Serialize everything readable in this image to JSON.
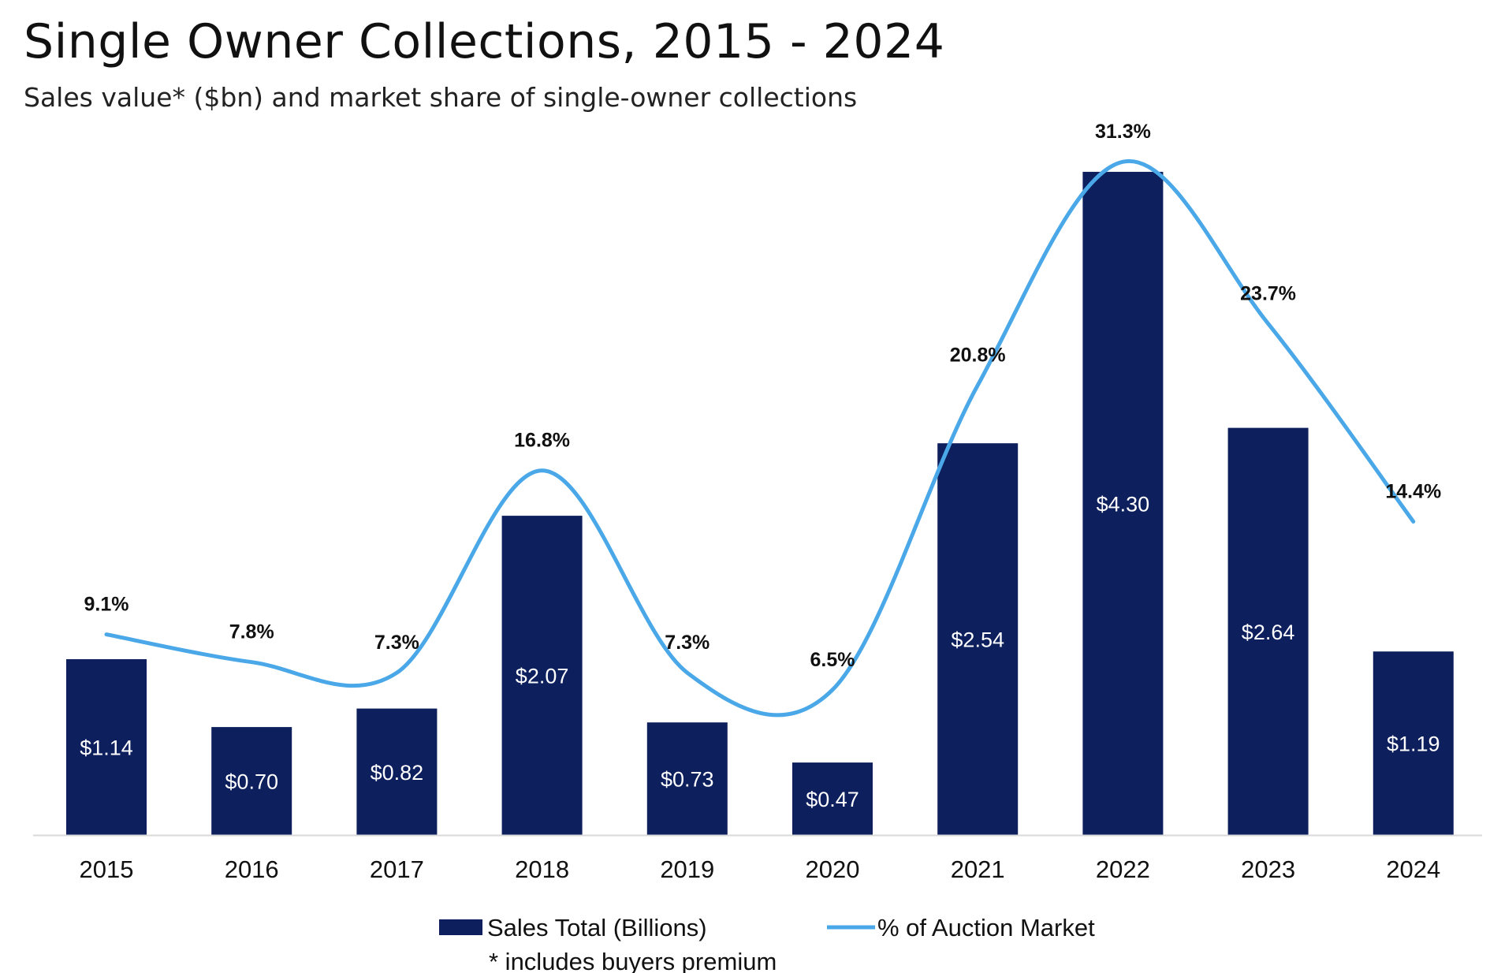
{
  "chart_data": {
    "type": "bar",
    "title": "Single Owner Collections, 2015 - 2024",
    "subtitle": "Sales value* ($bn) and market share of single-owner collections",
    "categories": [
      "2015",
      "2016",
      "2017",
      "2018",
      "2019",
      "2020",
      "2021",
      "2022",
      "2023",
      "2024"
    ],
    "series": [
      {
        "name": "Sales Total (Billions)",
        "type": "bar",
        "color": "#0d1f5c",
        "values": [
          1.14,
          0.7,
          0.82,
          2.07,
          0.73,
          0.47,
          2.54,
          4.3,
          2.64,
          1.19
        ],
        "labels": [
          "$1.14",
          "$0.70",
          "$0.82",
          "$2.07",
          "$0.73",
          "$0.47",
          "$2.54",
          "$4.30",
          "$2.64",
          "$1.19"
        ]
      },
      {
        "name": "% of Auction Market",
        "type": "line",
        "color": "#4aa8e8",
        "values": [
          9.1,
          7.8,
          7.3,
          16.8,
          7.3,
          6.5,
          20.8,
          31.3,
          23.7,
          14.4
        ],
        "labels": [
          "9.1%",
          "7.8%",
          "7.3%",
          "16.8%",
          "7.3%",
          "6.5%",
          "20.8%",
          "31.3%",
          "23.7%",
          "14.4%"
        ]
      }
    ],
    "xlabel": "",
    "ylabel": "",
    "legend_position": "bottom",
    "grid": false,
    "footnote": "* includes buyers premium"
  }
}
